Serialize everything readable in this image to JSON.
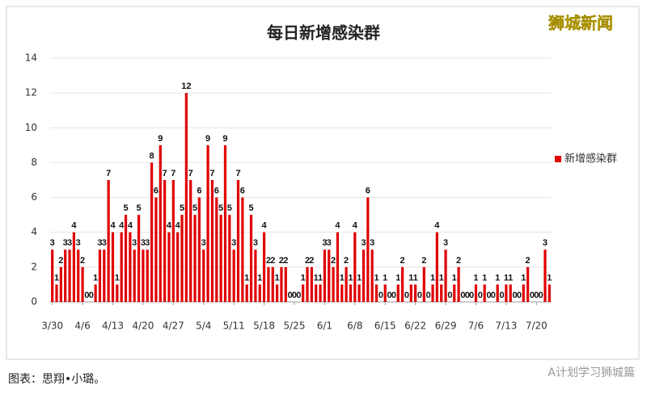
{
  "chart_data": {
    "type": "bar",
    "title": "每日新增感染群",
    "categories": [
      "3/30",
      null,
      null,
      null,
      null,
      null,
      null,
      "4/6",
      null,
      null,
      null,
      null,
      null,
      null,
      "4/13",
      null,
      null,
      null,
      null,
      null,
      null,
      "4/20",
      null,
      null,
      null,
      null,
      null,
      null,
      "4/27",
      null,
      null,
      null,
      null,
      null,
      null,
      "5/4",
      null,
      null,
      null,
      null,
      null,
      null,
      "5/11",
      null,
      null,
      null,
      null,
      null,
      null,
      "5/18",
      null,
      null,
      null,
      null,
      null,
      null,
      "5/25",
      null,
      null,
      null,
      null,
      null,
      null,
      "6/1",
      null,
      null,
      null,
      null,
      null,
      null,
      "6/8",
      null,
      null,
      null,
      null,
      null,
      null,
      "6/15",
      null,
      null,
      null,
      null,
      null,
      null,
      "6/22",
      null,
      null,
      null,
      null,
      null,
      null,
      "6/29",
      null,
      null,
      null,
      null,
      null,
      null,
      "7/6",
      null,
      null,
      null,
      null,
      null,
      null,
      "7/13",
      null,
      null,
      null,
      null,
      null,
      null,
      "7/20",
      null,
      null,
      null
    ],
    "series": [
      {
        "name": "新增感染群",
        "color": "#e00000",
        "values": [
          3,
          1,
          2,
          3,
          3,
          4,
          3,
          2,
          0,
          0,
          1,
          3,
          3,
          7,
          4,
          1,
          4,
          5,
          4,
          3,
          5,
          3,
          3,
          8,
          6,
          9,
          7,
          4,
          7,
          4,
          5,
          12,
          7,
          5,
          6,
          3,
          9,
          7,
          6,
          5,
          9,
          5,
          3,
          7,
          6,
          1,
          5,
          3,
          1,
          4,
          2,
          2,
          1,
          2,
          2,
          0,
          0,
          0,
          1,
          2,
          2,
          1,
          1,
          3,
          3,
          2,
          4,
          1,
          2,
          1,
          4,
          1,
          3,
          6,
          3,
          1,
          0,
          1,
          0,
          0,
          1,
          2,
          0,
          1,
          1,
          0,
          2,
          0,
          1,
          4,
          1,
          3,
          0,
          1,
          2,
          0,
          0,
          0,
          1,
          0,
          1,
          0,
          0,
          1,
          0,
          1,
          1,
          0,
          0,
          1,
          2,
          0,
          0,
          0,
          3,
          1
        ]
      }
    ],
    "ylim": [
      0,
      14
    ],
    "yticks": [
      0,
      2,
      4,
      6,
      8,
      10,
      12,
      14
    ],
    "grid": true,
    "legend": "right"
  },
  "watermark": "狮城新闻",
  "footer": "图表：思翔•小璐。",
  "credit": "A计划学习狮城篇"
}
